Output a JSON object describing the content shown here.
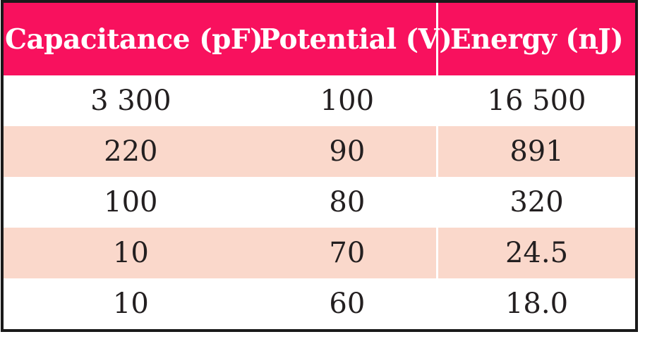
{
  "chart_data": {
    "type": "table",
    "columns": [
      "Capacitance (pF)",
      "Potential (V)",
      "Energy (nJ)"
    ],
    "rows": [
      [
        "3 300",
        "100",
        "16 500"
      ],
      [
        "220",
        "90",
        "891"
      ],
      [
        "100",
        "80",
        "320"
      ],
      [
        "10",
        "70",
        "24.5"
      ],
      [
        "10",
        "60",
        "18.0"
      ]
    ],
    "numeric": {
      "capacitance_pF": [
        3300,
        220,
        100,
        10,
        10
      ],
      "potential_V": [
        100,
        90,
        80,
        70,
        60
      ],
      "energy_nJ": [
        16500,
        891,
        320,
        24.5,
        18.0
      ]
    },
    "layout_hints": {
      "header_style": "bold white serif on pink band",
      "row_striping": "white / pale pink alternating starting with white",
      "column_divider": "thin white line before Energy column only"
    }
  },
  "colors": {
    "header_bg": "#f8115e",
    "header_text": "#ffffff",
    "row_bg": "#ffffff",
    "row_alt_bg": "#fad8cb",
    "text": "#231f20",
    "border": "#1a1a1a",
    "divider": "#ffffff"
  }
}
